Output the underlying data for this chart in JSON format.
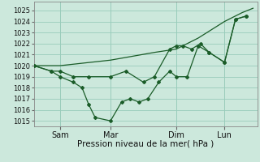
{
  "bg_color": "#cce8dc",
  "grid_color": "#99ccbb",
  "line_color": "#1a5c28",
  "xlabel": "Pression niveau de la mer( hPa )",
  "ylim": [
    1014.5,
    1025.8
  ],
  "yticks": [
    1015,
    1016,
    1017,
    1018,
    1019,
    1020,
    1021,
    1022,
    1023,
    1024,
    1025
  ],
  "xtick_labels": [
    "Sam",
    "Mar",
    "Dim",
    "Lun"
  ],
  "xtick_positions": [
    0.12,
    0.35,
    0.65,
    0.87
  ],
  "series_smooth": {
    "x": [
      0.0,
      0.12,
      0.35,
      0.55,
      0.65,
      0.75,
      0.87,
      0.95,
      1.0
    ],
    "y": [
      1020.0,
      1020.0,
      1020.5,
      1021.2,
      1021.5,
      1022.5,
      1024.0,
      1024.8,
      1025.2
    ]
  },
  "series_upper": {
    "x": [
      0.0,
      0.08,
      0.12,
      0.18,
      0.25,
      0.35,
      0.42,
      0.5,
      0.55,
      0.62,
      0.65,
      0.68,
      0.72,
      0.76,
      0.8,
      0.87,
      0.92,
      0.97
    ],
    "y": [
      1020.0,
      1019.5,
      1019.5,
      1019.0,
      1019.0,
      1019.0,
      1019.5,
      1018.5,
      1019.0,
      1021.5,
      1021.8,
      1021.8,
      1021.5,
      1022.0,
      1021.2,
      1020.3,
      1024.2,
      1024.5
    ]
  },
  "series_lower": {
    "x": [
      0.0,
      0.08,
      0.12,
      0.18,
      0.22,
      0.25,
      0.28,
      0.35,
      0.4,
      0.44,
      0.48,
      0.52,
      0.57,
      0.62,
      0.65,
      0.7,
      0.75,
      0.8,
      0.87,
      0.92,
      0.97
    ],
    "y": [
      1020.0,
      1019.5,
      1019.0,
      1018.5,
      1018.0,
      1016.5,
      1015.3,
      1015.0,
      1016.7,
      1017.0,
      1016.7,
      1017.0,
      1018.5,
      1019.5,
      1019.0,
      1019.0,
      1021.8,
      1021.2,
      1020.3,
      1024.2,
      1024.5
    ]
  }
}
